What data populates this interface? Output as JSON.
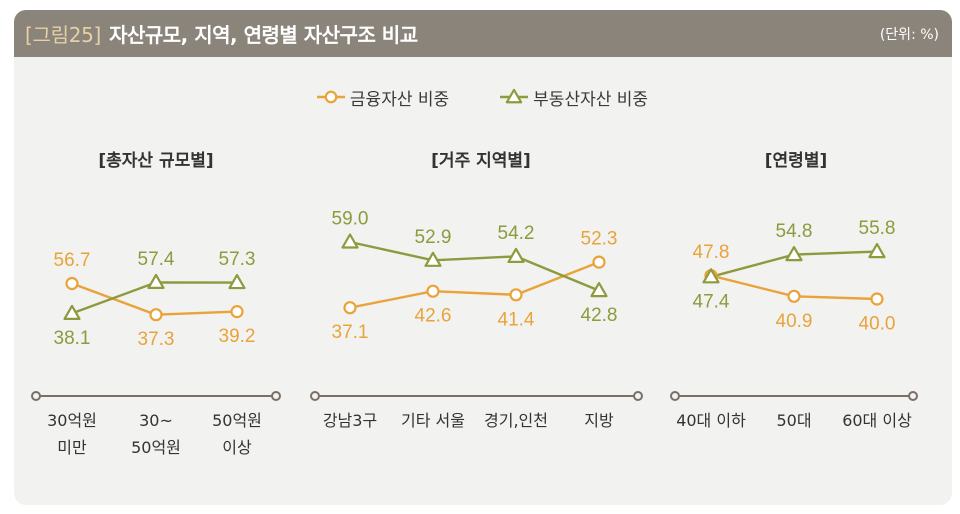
{
  "header": {
    "figure_tag": "[그림25]",
    "title": "자산규모, 지역, 연령별 자산구조 비교",
    "unit": "(단위: %)"
  },
  "legend_placement": "top-center",
  "chart_data": [
    {
      "type": "line",
      "title": "[총자산 규모별]",
      "categories": [
        "30억원\n미만",
        "30~\n50억원",
        "50억원\n이상"
      ],
      "series": [
        {
          "name": "금융자산 비중",
          "marker": "circle",
          "color": "#E9A33B",
          "values": [
            56.7,
            37.3,
            39.2
          ]
        },
        {
          "name": "부동산자산 비중",
          "marker": "triangle",
          "color": "#8E9A3D",
          "values": [
            38.1,
            57.4,
            57.3
          ]
        }
      ],
      "ylim": [
        34,
        90
      ],
      "grid": false,
      "data_labels": true
    },
    {
      "type": "line",
      "title": "[거주 지역별]",
      "categories": [
        "강남3구",
        "기타 서울",
        "경기,인천",
        "지방"
      ],
      "series": [
        {
          "name": "금융자산 비중",
          "marker": "circle",
          "color": "#E9A33B",
          "values": [
            37.1,
            42.6,
            41.4,
            52.3
          ]
        },
        {
          "name": "부동산자산 비중",
          "marker": "triangle",
          "color": "#8E9A3D",
          "values": [
            59.0,
            52.9,
            54.2,
            42.8
          ]
        }
      ],
      "ylim": [
        33,
        63
      ],
      "grid": false,
      "data_labels": true
    },
    {
      "type": "line",
      "title": "[연령별]",
      "categories": [
        "40대 이하",
        "50대",
        "60대 이상"
      ],
      "series": [
        {
          "name": "금융자산 비중",
          "marker": "circle",
          "color": "#E9A33B",
          "values": [
            47.8,
            40.9,
            40.0
          ]
        },
        {
          "name": "부동산자산 비중",
          "marker": "triangle",
          "color": "#8E9A3D",
          "values": [
            47.4,
            54.8,
            55.8
          ]
        }
      ],
      "ylim": [
        33,
        63
      ],
      "grid": false,
      "data_labels": true
    }
  ]
}
